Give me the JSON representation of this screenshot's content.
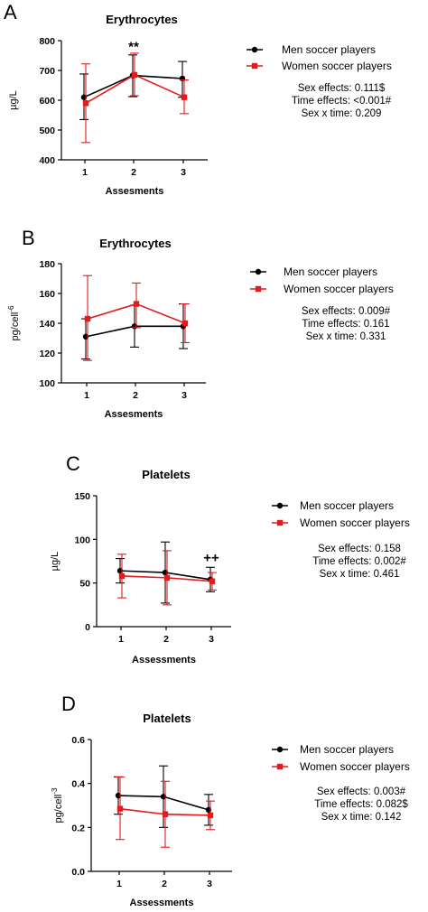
{
  "chart_data": [
    {
      "type": "line",
      "panel": "A",
      "title": "Erythrocytes",
      "xlabel": "Assesments",
      "ylabel": "µg/L",
      "categories": [
        "1",
        "2",
        "3"
      ],
      "ylim": [
        400,
        800
      ],
      "yticks": [
        "400",
        "500",
        "600",
        "700",
        "800"
      ],
      "series": [
        {
          "name": "Men soccer players",
          "color": "#000000",
          "marker": "circle",
          "values": [
            610,
            683,
            673
          ],
          "err_low": [
            535,
            612,
            610
          ],
          "err_high": [
            688,
            752,
            730
          ]
        },
        {
          "name": "Women soccer players",
          "color": "#e41a1c",
          "marker": "square",
          "values": [
            590,
            685,
            610
          ],
          "err_low": [
            458,
            615,
            555
          ],
          "err_high": [
            722,
            758,
            668
          ]
        }
      ],
      "annotations": [
        {
          "text": "**",
          "category": "2",
          "value": 765
        }
      ],
      "stats": [
        "Sex effects: 0.111$",
        "Time effects: <0.001#",
        "Sex x time: 0.209"
      ]
    },
    {
      "type": "line",
      "panel": "B",
      "title": "Erythrocytes",
      "xlabel": "Assesments",
      "ylabel_main": "pg/cell",
      "ylabel_sup": "-6",
      "categories": [
        "1",
        "2",
        "3"
      ],
      "ylim": [
        100,
        180
      ],
      "yticks": [
        "100",
        "120",
        "140",
        "160",
        "180"
      ],
      "series": [
        {
          "name": "Men soccer players",
          "color": "#000000",
          "marker": "circle",
          "values": [
            131,
            138,
            138
          ],
          "err_low": [
            116,
            124,
            123
          ],
          "err_high": [
            143,
            152,
            153
          ]
        },
        {
          "name": "Women soccer players",
          "color": "#e41a1c",
          "marker": "square",
          "values": [
            143,
            153,
            140
          ],
          "err_low": [
            115,
            137,
            127
          ],
          "err_high": [
            172,
            167,
            153
          ]
        }
      ],
      "annotations": [],
      "stats": [
        "Sex effects: 0.009#",
        "Time effects: 0.161",
        "Sex x time: 0.331"
      ]
    },
    {
      "type": "line",
      "panel": "C",
      "title": "Platelets",
      "xlabel": "Assessments",
      "ylabel": "µg/L",
      "categories": [
        "1",
        "2",
        "3"
      ],
      "ylim": [
        0,
        150
      ],
      "yticks": [
        "0",
        "50",
        "100",
        "150"
      ],
      "series": [
        {
          "name": "Men soccer players",
          "color": "#000000",
          "marker": "circle",
          "values": [
            64,
            62,
            54
          ],
          "err_low": [
            50,
            27,
            40
          ],
          "err_high": [
            78,
            97,
            68
          ]
        },
        {
          "name": "Women soccer players",
          "color": "#e41a1c",
          "marker": "square",
          "values": [
            58,
            56,
            52
          ],
          "err_low": [
            33,
            25,
            42
          ],
          "err_high": [
            83,
            87,
            62
          ]
        }
      ],
      "annotations": [
        {
          "text": "++",
          "category": "3",
          "value": 74
        }
      ],
      "stats": [
        "Sex effects: 0.158",
        "Time effects: 0.002#",
        "Sex x time: 0.461"
      ]
    },
    {
      "type": "line",
      "panel": "D",
      "title": "Platelets",
      "xlabel": "Assessments",
      "ylabel_main": "pg/cell",
      "ylabel_sup": "-3",
      "categories": [
        "1",
        "2",
        "3"
      ],
      "ylim": [
        0.0,
        0.6
      ],
      "yticks": [
        "0.0",
        "0.2",
        "0.4",
        "0.6"
      ],
      "series": [
        {
          "name": "Men soccer players",
          "color": "#000000",
          "marker": "circle",
          "values": [
            0.345,
            0.34,
            0.28
          ],
          "err_low": [
            0.26,
            0.2,
            0.21
          ],
          "err_high": [
            0.43,
            0.48,
            0.35
          ]
        },
        {
          "name": "Women soccer players",
          "color": "#e41a1c",
          "marker": "square",
          "values": [
            0.285,
            0.26,
            0.255
          ],
          "err_low": [
            0.145,
            0.11,
            0.19
          ],
          "err_high": [
            0.43,
            0.41,
            0.32
          ]
        }
      ],
      "annotations": [],
      "stats": [
        "Sex effects: 0.003#",
        "Time effects: 0.082$",
        "Sex x time: 0.142"
      ]
    }
  ]
}
